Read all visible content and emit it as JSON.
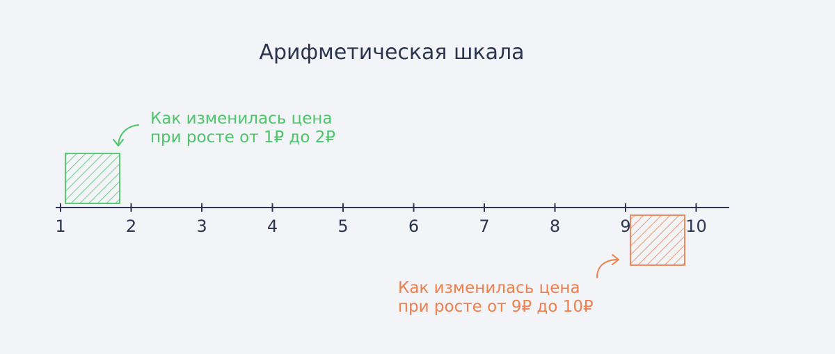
{
  "title": "Арифметическая шкала",
  "colors": {
    "background": "#f3f4f7",
    "axis": "#2b3550",
    "green": "#4cc46a",
    "orange": "#f07f4b"
  },
  "scale": {
    "type": "arithmetic",
    "range": [
      1,
      10
    ],
    "ticks": [
      "1",
      "2",
      "3",
      "4",
      "5",
      "6",
      "7",
      "8",
      "9",
      "10"
    ]
  },
  "annotations": {
    "green": {
      "line1": "Как изменилась цена",
      "line2": "при росте от 1₽ до 2₽",
      "from": 1,
      "to": 2
    },
    "orange": {
      "line1": "Как изменилась цена",
      "line2": "при росте от 9₽ до 10₽",
      "from": 9,
      "to": 10
    }
  }
}
